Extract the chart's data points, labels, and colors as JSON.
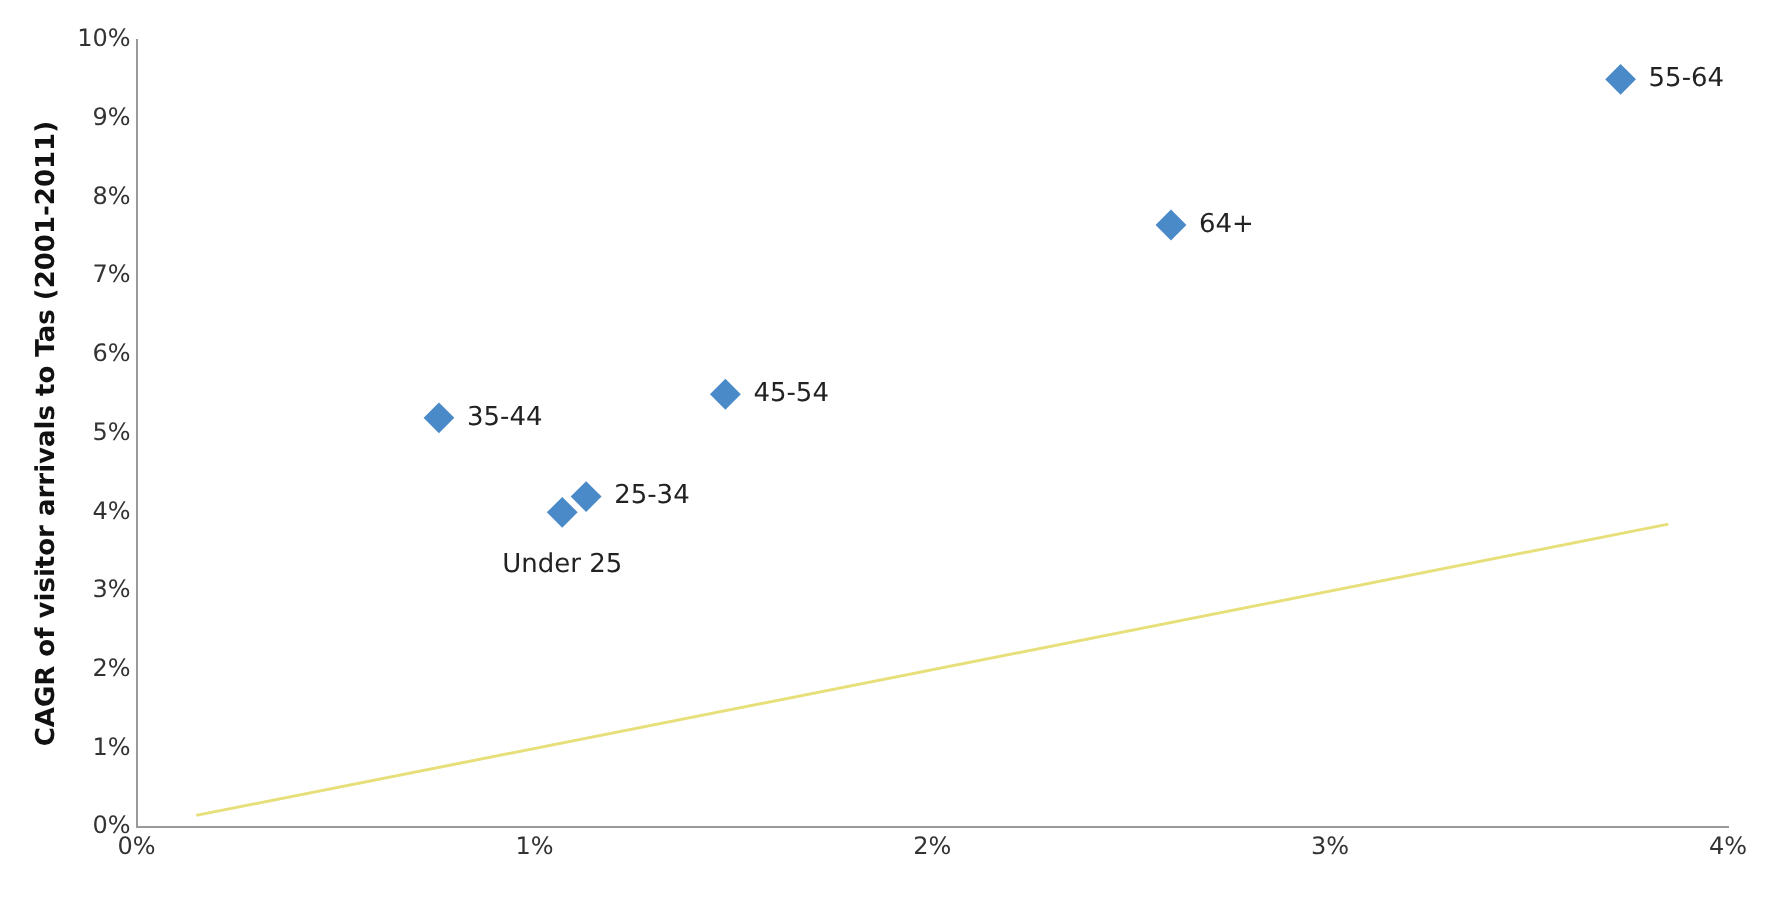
{
  "chart_data": {
    "type": "scatter",
    "ylabel": "CAGR of visitor arrivals to Tas (2001-2011)",
    "series": [
      {
        "color": "#4a8ac8",
        "x": [
          0.76,
          1.07,
          1.13,
          1.48,
          2.6,
          3.73
        ],
        "values": [
          5.2,
          4.0,
          4.2,
          5.5,
          7.65,
          9.5
        ],
        "marker": "diamond"
      },
      {
        "type": "line",
        "color": "#e6df7a",
        "x": [
          0.15,
          3.85
        ],
        "values": [
          0.15,
          3.85
        ],
        "marker": "none"
      }
    ],
    "annotations": [
      {
        "text": "35-44",
        "x": 0.76,
        "y": 5.2
      },
      {
        "text": "Under 25",
        "x": 1.07,
        "y": 4.0
      },
      {
        "text": "25-34",
        "x": 1.13,
        "y": 4.2
      },
      {
        "text": "45-54",
        "x": 1.48,
        "y": 5.5
      },
      {
        "text": "64+",
        "x": 2.6,
        "y": 7.65
      },
      {
        "text": "55-64",
        "x": 3.73,
        "y": 9.5
      }
    ],
    "xlim": [
      0,
      4
    ],
    "xticks": [
      {
        "value": 0,
        "label": "0%"
      },
      {
        "value": 1,
        "label": "1%"
      },
      {
        "value": 2,
        "label": "2%"
      },
      {
        "value": 3,
        "label": "3%"
      },
      {
        "value": 4,
        "label": "4%"
      }
    ],
    "ylim": [
      0,
      10
    ],
    "yticks": [
      {
        "value": 0,
        "label": "0%"
      },
      {
        "value": 1,
        "label": "1%"
      },
      {
        "value": 2,
        "label": "2%"
      },
      {
        "value": 3,
        "label": "3%"
      },
      {
        "value": 4,
        "label": "4%"
      },
      {
        "value": 5,
        "label": "5%"
      },
      {
        "value": 6,
        "label": "6%"
      },
      {
        "value": 7,
        "label": "7%"
      },
      {
        "value": 8,
        "label": "8%"
      },
      {
        "value": 9,
        "label": "9%"
      },
      {
        "value": 10,
        "label": "10%"
      }
    ],
    "grid": false,
    "legend": false
  }
}
